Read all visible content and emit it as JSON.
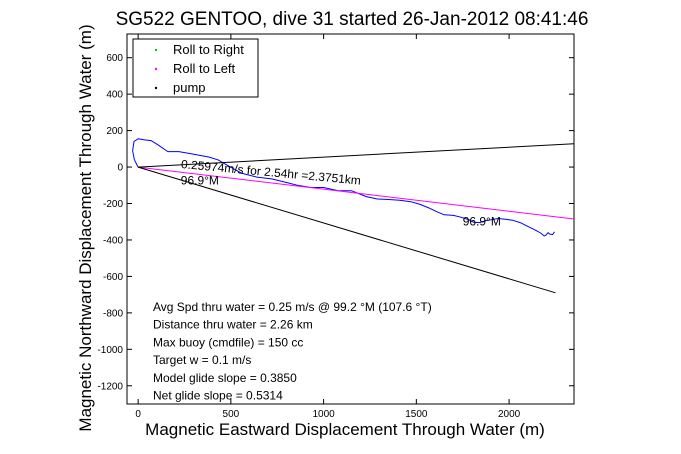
{
  "chart_data": {
    "type": "line",
    "title": "SG522 GENTOO, dive 31 started 26-Jan-2012 08:41:46",
    "xlabel": "Magnetic Eastward Displacement Through Water (m)",
    "ylabel": "Magnetic Northward Displacement Through Water (m)",
    "xlim": [
      -60,
      2350
    ],
    "ylim": [
      -1300,
      730
    ],
    "xticks": [
      0,
      500,
      1000,
      1500,
      2000
    ],
    "yticks": [
      -1200,
      -1000,
      -800,
      -600,
      -400,
      -200,
      0,
      200,
      400,
      600
    ],
    "grid": false,
    "legend_position": "top-left",
    "legend": [
      {
        "label": "Roll to Right",
        "color": "#00c800",
        "marker": "."
      },
      {
        "label": "Roll to Left",
        "color": "#ff00ff",
        "marker": "."
      },
      {
        "label": "pump",
        "color": "#000000",
        "marker": "."
      }
    ],
    "series": [
      {
        "name": "track",
        "color": "#0000ff",
        "x": [
          0,
          -20,
          -30,
          -22,
          0,
          30,
          70,
          110,
          160,
          220,
          300,
          380,
          430,
          480,
          560,
          640,
          720,
          800,
          860,
          930,
          1000,
          1080,
          1150,
          1230,
          1290,
          1350,
          1410,
          1470,
          1520,
          1570,
          1610,
          1650,
          1700,
          1740,
          1780,
          1810,
          1840,
          1870,
          1900,
          1940,
          1980,
          2020,
          2060,
          2100,
          2140,
          2170,
          2190,
          2200,
          2210,
          2220,
          2235,
          2245
        ],
        "y": [
          0,
          40,
          90,
          140,
          155,
          150,
          145,
          120,
          85,
          85,
          70,
          55,
          40,
          10,
          -35,
          -55,
          -65,
          -85,
          -100,
          -112,
          -112,
          -130,
          -130,
          -162,
          -175,
          -178,
          -182,
          -190,
          -205,
          -225,
          -245,
          -262,
          -265,
          -275,
          -288,
          -303,
          -305,
          -295,
          -290,
          -282,
          -286,
          -292,
          -305,
          -325,
          -345,
          -362,
          -378,
          -372,
          -360,
          -368,
          -370,
          -355
        ]
      },
      {
        "name": "drift",
        "color": "#ff00ff",
        "x": [
          0,
          2350
        ],
        "y": [
          0,
          -285
        ]
      },
      {
        "name": "",
        "color": "#000000",
        "x": [
          0,
          2350
        ],
        "y": [
          0,
          128
        ]
      },
      {
        "name": "",
        "color": "#000000",
        "x": [
          0,
          2250
        ],
        "y": [
          0,
          -690
        ]
      }
    ],
    "annotations": [
      {
        "text": "0.25974m/s for 2.54hr =2.3751km",
        "x": 230,
        "y": -5,
        "rotation": 5.3
      },
      {
        "text": "96.9°M",
        "x": 230,
        "y": -95,
        "rotation": 0
      },
      {
        "text": "96.9°M",
        "x": 1750,
        "y": -320,
        "rotation": 0
      }
    ],
    "stats": [
      "Avg Spd thru water =  0.25 m/s @  99.2   °M (107.6 °T)",
      "Distance thru water =  2.26 km",
      "Max buoy (cmdfile) = 150 cc",
      "Target w = 0.1 m/s",
      "Model glide slope = 0.3850",
      "Net glide slope = 0.5314"
    ]
  }
}
